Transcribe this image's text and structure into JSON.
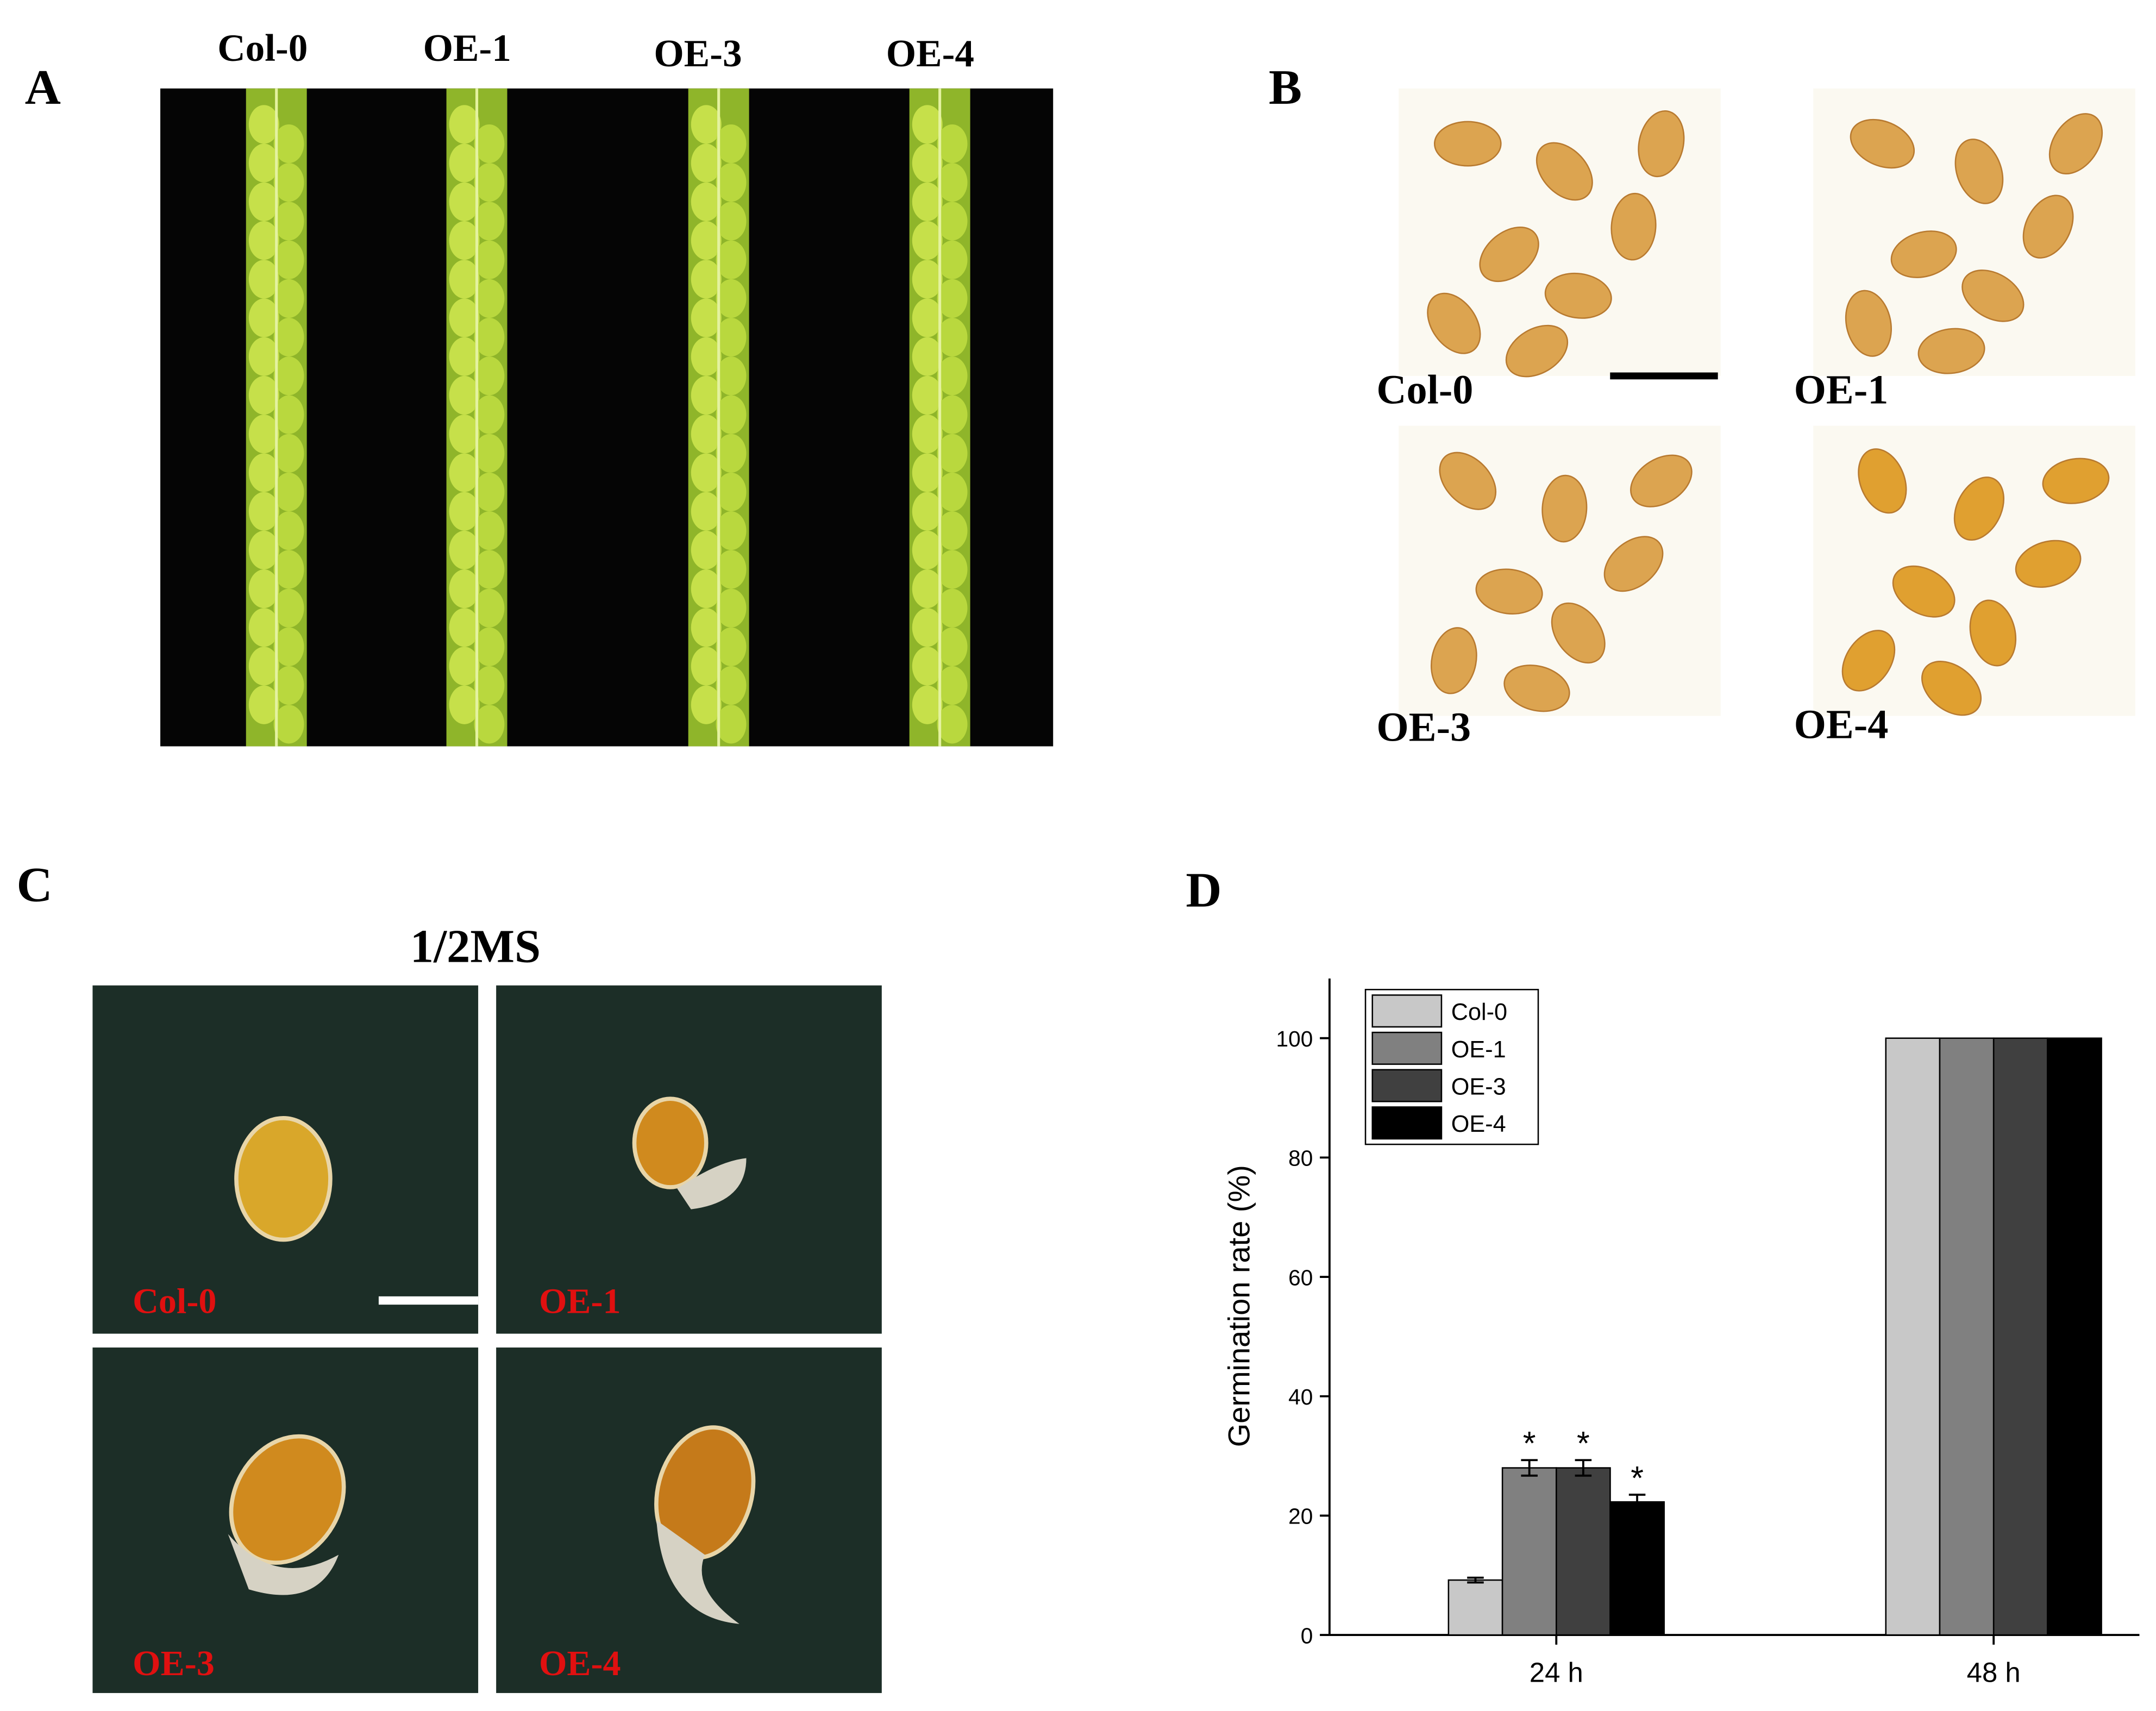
{
  "panel_a": {
    "label": "A",
    "columns": [
      "Col-0",
      "OE-1",
      "OE-3",
      "OE-4"
    ]
  },
  "panel_b": {
    "label": "B",
    "captions": [
      "Col-0",
      "OE-1",
      "OE-3",
      "OE-4"
    ]
  },
  "panel_c": {
    "label": "C",
    "title": "1/2MS",
    "captions": [
      "Col-0",
      "OE-1",
      "OE-3",
      "OE-4"
    ]
  },
  "panel_d": {
    "label": "D"
  },
  "chart_data": {
    "type": "bar",
    "y_label": "Germination rate (%)",
    "categories": [
      "24 h",
      "48 h"
    ],
    "series": [
      {
        "name": "Col-0",
        "color": "#c8c8c8",
        "values": [
          9.2,
          100
        ],
        "errors": [
          0.4,
          null
        ]
      },
      {
        "name": "OE-1",
        "color": "#808080",
        "values": [
          28,
          100
        ],
        "errors": [
          1.3,
          null
        ],
        "annotations": [
          "*",
          null
        ]
      },
      {
        "name": "OE-3",
        "color": "#404040",
        "values": [
          28,
          100
        ],
        "errors": [
          1.3,
          null
        ],
        "annotations": [
          "*",
          null
        ]
      },
      {
        "name": "OE-4",
        "color": "#000000",
        "values": [
          22.3,
          100
        ],
        "errors": [
          1.2,
          null
        ],
        "annotations": [
          "*",
          null
        ]
      }
    ],
    "ylim": [
      0,
      110
    ],
    "yticks": [
      0,
      20,
      40,
      60,
      80,
      100
    ],
    "legend": "upper left"
  }
}
